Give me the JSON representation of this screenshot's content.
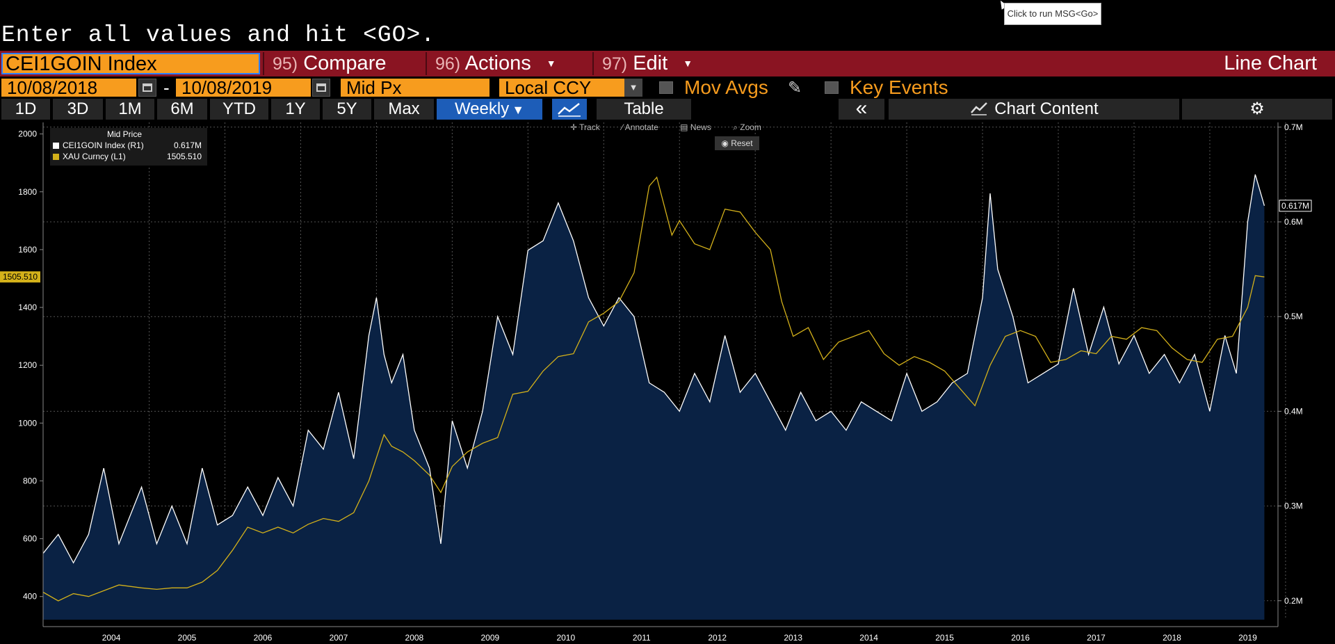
{
  "command_line": "Enter all values and hit <GO>.",
  "tooltip": "Click to run MSG<Go>",
  "ticker": "CEI1GOIN Index",
  "menu": [
    {
      "num": "95)",
      "label": "Compare",
      "caret": ""
    },
    {
      "num": "96)",
      "label": "Actions",
      "caret": "▼"
    },
    {
      "num": "97)",
      "label": "Edit",
      "caret": "▼"
    }
  ],
  "chart_type_label": "Line Chart",
  "date_start": "10/08/2018",
  "date_sep": "-",
  "date_end": "10/08/2019",
  "price_field": "Mid Px",
  "currency": "Local CCY",
  "dropdown_glyph": "▼",
  "mov_avgs": "Mov Avgs",
  "key_events": "Key Events",
  "ranges": [
    "1D",
    "3D",
    "1M",
    "6M",
    "YTD",
    "1Y",
    "5Y",
    "Max"
  ],
  "period": "Weekly",
  "table_label": "Table",
  "collapse_glyph": "«",
  "chart_content": "Chart Content",
  "tools": {
    "track": "Track",
    "annotate": "Annotate",
    "news": "News",
    "zoom": "Zoom",
    "reset": "Reset"
  },
  "legend": {
    "header": "Mid Price",
    "s1_label": "CEI1GOIN Index  (R1)",
    "s1_value": "0.617M",
    "s2_label": "XAU Curncy  (L1)",
    "s2_value": "1505.510"
  },
  "colors": {
    "gold": "#d4b11a",
    "index": "#ffffff",
    "fill": "#0a2244",
    "accent": "#f79c1e",
    "menu_bar": "#8a1422"
  },
  "chart_data": {
    "type": "line",
    "title": "Mid Price",
    "x_ticks": [
      "2004",
      "2005",
      "2006",
      "2007",
      "2008",
      "2009",
      "2010",
      "2011",
      "2012",
      "2013",
      "2014",
      "2015",
      "2016",
      "2017",
      "2018",
      "2019"
    ],
    "x_range": [
      2003.6,
      2019.9
    ],
    "left_axis": {
      "ticks": [
        400,
        600,
        800,
        1000,
        1200,
        1400,
        1600,
        1800,
        2000
      ],
      "range": [
        320,
        2040
      ],
      "last_label": "1505.510"
    },
    "right_axis": {
      "ticks": [
        "0.2M",
        "0.3M",
        "0.4M",
        "0.5M",
        "0.6M",
        "0.7M"
      ],
      "values": [
        0.2,
        0.3,
        0.4,
        0.5,
        0.6,
        0.7
      ],
      "range": [
        0.18,
        0.705
      ],
      "last_label": "0.617M"
    },
    "series": [
      {
        "name": "CEI1GOIN Index (R1)",
        "axis": "right",
        "style": "area",
        "x": [
          2003.6,
          2003.7,
          2003.8,
          2004.0,
          2004.2,
          2004.4,
          2004.6,
          2004.9,
          2005.1,
          2005.3,
          2005.5,
          2005.7,
          2005.9,
          2006.1,
          2006.3,
          2006.5,
          2006.7,
          2006.9,
          2007.1,
          2007.3,
          2007.5,
          2007.7,
          2007.9,
          2008.0,
          2008.1,
          2008.2,
          2008.35,
          2008.5,
          2008.7,
          2008.85,
          2009.0,
          2009.2,
          2009.4,
          2009.6,
          2009.8,
          2010.0,
          2010.2,
          2010.4,
          2010.6,
          2010.8,
          2011.0,
          2011.2,
          2011.4,
          2011.6,
          2011.8,
          2012.0,
          2012.2,
          2012.4,
          2012.6,
          2012.8,
          2013.0,
          2013.2,
          2013.4,
          2013.6,
          2013.8,
          2014.0,
          2014.2,
          2014.4,
          2014.6,
          2014.8,
          2015.0,
          2015.2,
          2015.4,
          2015.6,
          2015.8,
          2016.0,
          2016.1,
          2016.2,
          2016.4,
          2016.6,
          2016.8,
          2017.0,
          2017.2,
          2017.4,
          2017.6,
          2017.8,
          2018.0,
          2018.2,
          2018.4,
          2018.6,
          2018.8,
          2019.0,
          2019.2,
          2019.35,
          2019.5,
          2019.6,
          2019.72
        ],
        "y": [
          0.25,
          0.26,
          0.27,
          0.24,
          0.27,
          0.34,
          0.26,
          0.32,
          0.26,
          0.3,
          0.26,
          0.34,
          0.28,
          0.29,
          0.32,
          0.29,
          0.33,
          0.3,
          0.38,
          0.36,
          0.42,
          0.35,
          0.48,
          0.52,
          0.46,
          0.43,
          0.46,
          0.38,
          0.34,
          0.26,
          0.39,
          0.34,
          0.4,
          0.5,
          0.46,
          0.57,
          0.58,
          0.62,
          0.58,
          0.52,
          0.49,
          0.52,
          0.5,
          0.43,
          0.42,
          0.4,
          0.44,
          0.41,
          0.48,
          0.42,
          0.44,
          0.41,
          0.38,
          0.42,
          0.39,
          0.4,
          0.38,
          0.41,
          0.4,
          0.39,
          0.44,
          0.4,
          0.41,
          0.43,
          0.44,
          0.52,
          0.63,
          0.55,
          0.5,
          0.43,
          0.44,
          0.45,
          0.53,
          0.46,
          0.51,
          0.45,
          0.48,
          0.44,
          0.46,
          0.43,
          0.46,
          0.4,
          0.48,
          0.44,
          0.6,
          0.65,
          0.617
        ]
      },
      {
        "name": "XAU Curncy (L1)",
        "axis": "left",
        "style": "line",
        "x": [
          2003.6,
          2003.8,
          2004.0,
          2004.2,
          2004.4,
          2004.6,
          2004.9,
          2005.1,
          2005.3,
          2005.5,
          2005.7,
          2005.9,
          2006.1,
          2006.3,
          2006.5,
          2006.7,
          2006.9,
          2007.1,
          2007.3,
          2007.5,
          2007.7,
          2007.9,
          2008.0,
          2008.1,
          2008.2,
          2008.35,
          2008.5,
          2008.7,
          2008.85,
          2009.0,
          2009.2,
          2009.4,
          2009.6,
          2009.8,
          2010.0,
          2010.2,
          2010.4,
          2010.6,
          2010.8,
          2011.0,
          2011.2,
          2011.4,
          2011.6,
          2011.7,
          2011.9,
          2012.0,
          2012.2,
          2012.4,
          2012.6,
          2012.8,
          2013.0,
          2013.2,
          2013.35,
          2013.5,
          2013.7,
          2013.9,
          2014.1,
          2014.3,
          2014.5,
          2014.7,
          2014.9,
          2015.1,
          2015.3,
          2015.5,
          2015.7,
          2015.9,
          2016.1,
          2016.3,
          2016.5,
          2016.7,
          2016.9,
          2017.1,
          2017.3,
          2017.5,
          2017.7,
          2017.9,
          2018.1,
          2018.3,
          2018.5,
          2018.7,
          2018.9,
          2019.1,
          2019.3,
          2019.5,
          2019.6,
          2019.72
        ],
        "y": [
          415,
          385,
          410,
          400,
          420,
          440,
          430,
          425,
          430,
          430,
          450,
          490,
          560,
          640,
          620,
          640,
          620,
          650,
          670,
          660,
          690,
          800,
          880,
          960,
          920,
          900,
          870,
          820,
          760,
          850,
          900,
          930,
          950,
          1100,
          1110,
          1180,
          1230,
          1240,
          1350,
          1380,
          1420,
          1520,
          1820,
          1850,
          1650,
          1700,
          1620,
          1600,
          1740,
          1730,
          1660,
          1600,
          1420,
          1300,
          1330,
          1220,
          1280,
          1300,
          1320,
          1240,
          1200,
          1230,
          1210,
          1180,
          1120,
          1060,
          1200,
          1300,
          1320,
          1300,
          1210,
          1220,
          1250,
          1240,
          1300,
          1290,
          1330,
          1320,
          1260,
          1220,
          1210,
          1290,
          1300,
          1400,
          1510,
          1505.51
        ]
      }
    ]
  }
}
